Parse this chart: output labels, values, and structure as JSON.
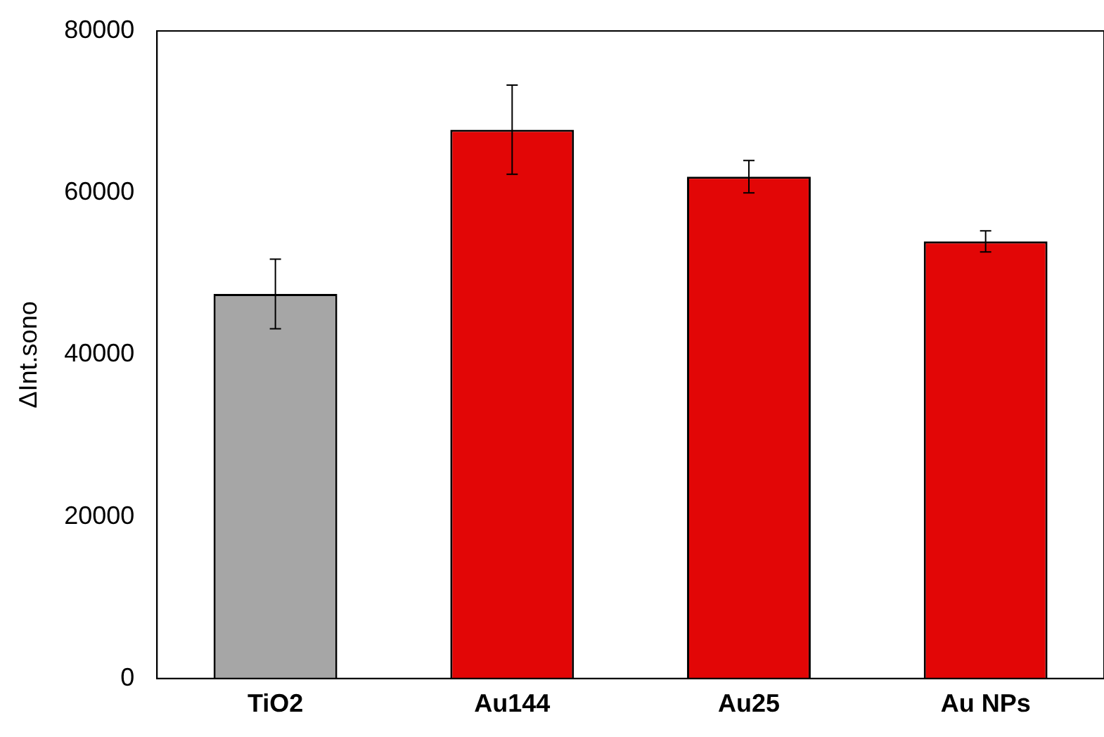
{
  "chart_data": {
    "type": "bar",
    "ylabel": "ΔInt.sono",
    "categories": [
      "TiO2",
      "Au144",
      "Au25",
      "Au NPs"
    ],
    "values": [
      47500,
      67800,
      62000,
      54000
    ],
    "colors": [
      "#a6a6a6",
      "#e20606",
      "#e20606",
      "#e20606"
    ],
    "errors": [
      4300,
      5500,
      2000,
      1300
    ],
    "ylim": [
      0,
      80000
    ],
    "yticks": [
      0,
      20000,
      40000,
      60000,
      80000
    ],
    "grid": false,
    "legend": false
  }
}
